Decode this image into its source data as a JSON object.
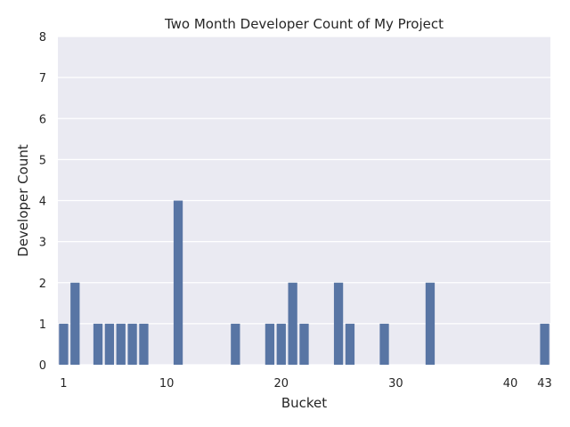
{
  "chart_data": {
    "type": "bar",
    "title": "Two Month Developer Count of My Project",
    "xlabel": "Bucket",
    "ylabel": "Developer Count",
    "x": [
      1,
      2,
      4,
      5,
      6,
      7,
      8,
      11,
      16,
      19,
      20,
      21,
      22,
      25,
      26,
      29,
      33,
      43
    ],
    "values": [
      1,
      2,
      1,
      1,
      1,
      1,
      1,
      4,
      1,
      1,
      1,
      2,
      1,
      2,
      1,
      1,
      2,
      1
    ],
    "xticks": [
      1,
      10,
      20,
      30,
      40,
      43
    ],
    "xlim": [
      1,
      43
    ],
    "ylim": [
      0,
      8
    ],
    "yticks": [
      0,
      1,
      2,
      3,
      4,
      5,
      6,
      7,
      8
    ],
    "grid": true,
    "bar_color": "#5875a4",
    "background_color": "#eaeaf2",
    "grid_color": "#ffffff"
  }
}
